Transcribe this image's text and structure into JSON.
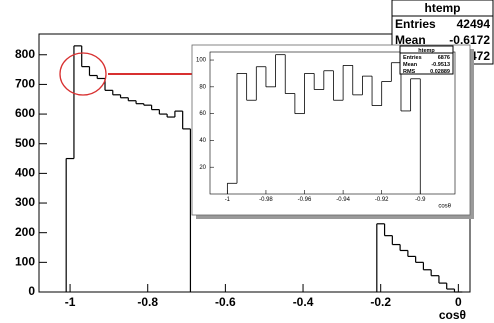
{
  "chart_data": [
    {
      "type": "histogram",
      "xlabel": "cosθ",
      "bins": [
        -1.01,
        -0.99,
        -0.97,
        -0.95,
        -0.93,
        -0.91,
        -0.89,
        -0.87,
        -0.85,
        -0.83,
        -0.81,
        -0.79,
        -0.77,
        -0.75,
        -0.73,
        -0.71,
        -0.69,
        -0.67,
        -0.65,
        -0.63,
        -0.61,
        -0.59,
        -0.57,
        -0.55,
        -0.53,
        -0.51,
        -0.49,
        -0.47,
        -0.45,
        -0.43,
        -0.41,
        -0.39,
        -0.37,
        -0.35,
        -0.33,
        -0.31,
        -0.29,
        -0.27,
        -0.25,
        -0.23,
        -0.21,
        -0.19,
        -0.17,
        -0.15,
        -0.13,
        -0.11,
        -0.09,
        -0.07,
        -0.05,
        -0.03,
        -0.01,
        0.01
      ],
      "values": [
        450,
        830,
        760,
        730,
        720,
        680,
        665,
        655,
        645,
        635,
        630,
        615,
        600,
        590,
        610,
        550,
        null,
        null,
        null,
        null,
        null,
        null,
        null,
        null,
        null,
        null,
        null,
        null,
        null,
        null,
        null,
        null,
        null,
        null,
        null,
        null,
        null,
        null,
        null,
        null,
        230,
        190,
        160,
        140,
        120,
        100,
        75,
        55,
        30,
        10,
        0
      ],
      "color": "#000000",
      "xlim": [
        -1.08,
        0.03
      ],
      "xticks": [
        -1,
        -0.8,
        -0.6,
        -0.4,
        -0.2,
        0
      ],
      "ylim": [
        0,
        870
      ],
      "yticks": [
        0,
        100,
        200,
        300,
        400,
        500,
        600,
        700,
        800
      ],
      "stats": {
        "title": "htemp",
        "rows": [
          [
            "Entries",
            42494
          ],
          [
            "Mean",
            -0.6172
          ],
          [
            null,
            "2472"
          ]
        ]
      }
    },
    {
      "type": "histogram",
      "xlabel": "cosθ",
      "bins": [
        -1,
        -0.995,
        -0.99,
        -0.985,
        -0.98,
        -0.975,
        -0.97,
        -0.965,
        -0.96,
        -0.955,
        -0.95,
        -0.945,
        -0.94,
        -0.935,
        -0.93,
        -0.925,
        -0.92,
        -0.915,
        -0.91,
        -0.905,
        -0.9
      ],
      "values": [
        8,
        90,
        70,
        95,
        80,
        104,
        75,
        60,
        90,
        78,
        92,
        70,
        96,
        74,
        88,
        66,
        84,
        98,
        62,
        86
      ],
      "color": "#000000",
      "xlim": [
        -1.009,
        -0.882
      ],
      "xticks": [
        -1,
        -0.98,
        -0.96,
        -0.94,
        -0.92,
        -0.9
      ],
      "ylim": [
        0,
        106
      ],
      "yticks": [
        20,
        40,
        60,
        80,
        100
      ],
      "stats": {
        "title": "htemp",
        "rows": [
          [
            "Entries",
            6876
          ],
          [
            "Mean",
            -0.9513
          ],
          [
            "RMS",
            0.02889
          ]
        ]
      }
    }
  ]
}
